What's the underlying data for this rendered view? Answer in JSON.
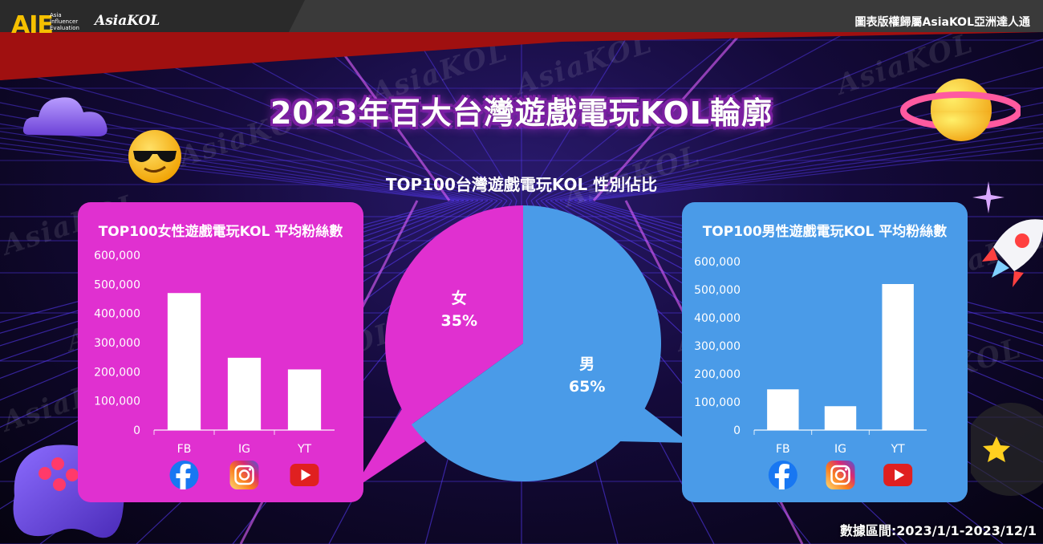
{
  "header": {
    "logo_mark": "AIE",
    "logo_subtitle": "Asia Influencer Evaluation",
    "logo_wordmark": "AsiaKOL",
    "copyright": "圖表版權歸屬AsiaKOL亞洲達人通"
  },
  "watermark_text": "AsiaKOL",
  "title": "2023年百大台灣遊戲電玩KOL輪廓",
  "date_range": "數據區間:2023/1/1-2023/12/1",
  "colors": {
    "female": "#e030d0",
    "male": "#4a9be8",
    "bar": "#ffffff",
    "facebook": "#1877f2",
    "youtube": "#e02020"
  },
  "icons": {
    "fb": "facebook-icon",
    "ig": "instagram-icon",
    "yt": "youtube-icon"
  },
  "chart_data": [
    {
      "type": "pie",
      "title": "TOP100台灣遊戲電玩KOL 性別佔比",
      "slices": [
        {
          "label": "女",
          "value": 35,
          "display": "35%"
        },
        {
          "label": "男",
          "value": 65,
          "display": "65%"
        }
      ]
    },
    {
      "type": "bar",
      "title": "TOP100女性遊戲電玩KOL 平均粉絲數",
      "categories": [
        "FB",
        "IG",
        "YT"
      ],
      "values": [
        470000,
        248000,
        208000
      ],
      "ylim": [
        0,
        600000
      ],
      "yticks": [
        "0",
        "100,000",
        "200,000",
        "300,000",
        "400,000",
        "500,000",
        "600,000"
      ],
      "ytick_values": [
        0,
        100000,
        200000,
        300000,
        400000,
        500000,
        600000
      ]
    },
    {
      "type": "bar",
      "title": "TOP100男性遊戲電玩KOL 平均粉絲數",
      "categories": [
        "FB",
        "IG",
        "YT"
      ],
      "values": [
        145000,
        85000,
        520000
      ],
      "ylim": [
        0,
        600000
      ],
      "yticks": [
        "0",
        "100,000",
        "200,000",
        "300,000",
        "400,000",
        "500,000",
        "600,000"
      ],
      "ytick_values": [
        0,
        100000,
        200000,
        300000,
        400000,
        500000,
        600000
      ]
    }
  ]
}
